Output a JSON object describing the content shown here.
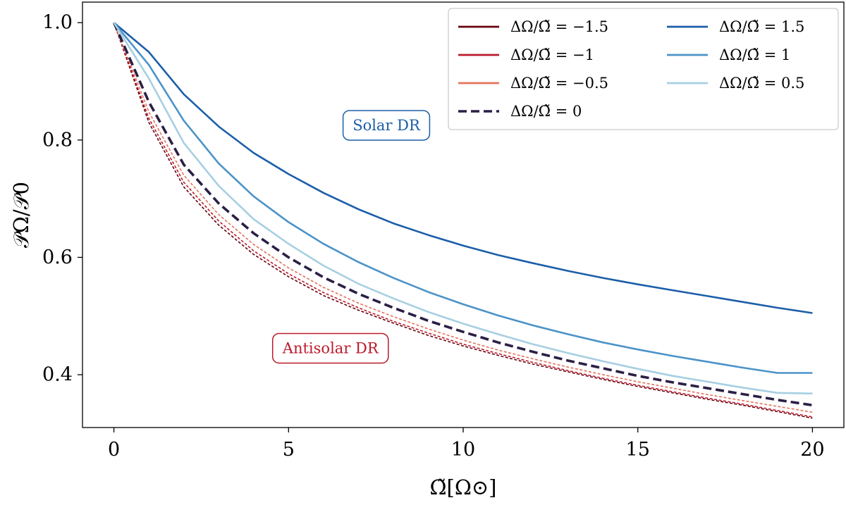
{
  "chart_data": {
    "type": "line",
    "title": "",
    "xlabel": "Ω̃[Ω⊙]",
    "ylabel": "𝒫Ω/𝒫0",
    "xlim": [
      -0.9,
      20.9
    ],
    "ylim": [
      0.31,
      1.035
    ],
    "xticks": [
      0,
      5,
      10,
      15,
      20
    ],
    "xtick_labels": [
      "0",
      "5",
      "10",
      "15",
      "20"
    ],
    "yticks": [
      0.4,
      0.6,
      0.8,
      1.0
    ],
    "ytick_labels": [
      "0.4",
      "0.6",
      "0.8",
      "1.0"
    ],
    "grid": false,
    "legend_position": "top-right",
    "x": [
      0,
      1,
      2,
      3,
      4,
      5,
      6,
      7,
      8,
      9,
      10,
      11,
      12,
      13,
      14,
      15,
      16,
      17,
      18,
      19,
      20
    ],
    "series": [
      {
        "name": "ΔΩ/Ω̃ = −1.5",
        "color": "#67000d",
        "style": "dashed-thin",
        "values": [
          1.0,
          0.83,
          0.72,
          0.655,
          0.605,
          0.567,
          0.535,
          0.51,
          0.488,
          0.467,
          0.449,
          0.433,
          0.418,
          0.405,
          0.392,
          0.38,
          0.369,
          0.358,
          0.348,
          0.337,
          0.326
        ]
      },
      {
        "name": "ΔΩ/Ω̃ = −1",
        "color": "#bb1a2b",
        "style": "dashed-thin",
        "values": [
          1.0,
          0.837,
          0.728,
          0.662,
          0.611,
          0.572,
          0.54,
          0.514,
          0.491,
          0.471,
          0.452,
          0.436,
          0.421,
          0.407,
          0.394,
          0.382,
          0.371,
          0.36,
          0.35,
          0.339,
          0.328
        ]
      },
      {
        "name": "ΔΩ/Ω̃ = −0.5",
        "color": "#e2735b",
        "style": "dashed-thin",
        "values": [
          1.0,
          0.848,
          0.74,
          0.673,
          0.622,
          0.582,
          0.549,
          0.522,
          0.499,
          0.478,
          0.459,
          0.442,
          0.427,
          0.413,
          0.4,
          0.388,
          0.377,
          0.366,
          0.356,
          0.346,
          0.336
        ]
      },
      {
        "name": "ΔΩ/Ω̃ = 0",
        "color": "#2b1f45",
        "style": "dashed-thick",
        "values": [
          1.0,
          0.865,
          0.758,
          0.692,
          0.641,
          0.6,
          0.566,
          0.538,
          0.514,
          0.492,
          0.473,
          0.455,
          0.439,
          0.424,
          0.411,
          0.398,
          0.387,
          0.377,
          0.367,
          0.357,
          0.348
        ]
      },
      {
        "name": "ΔΩ/Ω̃ = 1.5",
        "color": "#1c5ea8",
        "style": "solid",
        "values": [
          1.0,
          0.95,
          0.878,
          0.823,
          0.778,
          0.742,
          0.71,
          0.682,
          0.658,
          0.638,
          0.62,
          0.604,
          0.59,
          0.577,
          0.565,
          0.554,
          0.544,
          0.534,
          0.524,
          0.514,
          0.505
        ]
      },
      {
        "name": "ΔΩ/Ω̃ = 1",
        "color": "#4b93c8",
        "style": "solid",
        "values": [
          1.0,
          0.928,
          0.833,
          0.76,
          0.704,
          0.66,
          0.623,
          0.592,
          0.565,
          0.541,
          0.52,
          0.501,
          0.484,
          0.469,
          0.455,
          0.443,
          0.432,
          0.422,
          0.412,
          0.403,
          0.403
        ]
      },
      {
        "name": "ΔΩ/Ω̃ = 0.5",
        "color": "#a7cfe2",
        "style": "solid",
        "values": [
          1.0,
          0.905,
          0.795,
          0.722,
          0.665,
          0.623,
          0.586,
          0.555,
          0.53,
          0.507,
          0.487,
          0.469,
          0.452,
          0.437,
          0.423,
          0.41,
          0.398,
          0.388,
          0.378,
          0.369,
          0.368
        ]
      }
    ],
    "annotations": [
      {
        "text": "Solar DR",
        "x": 7.8,
        "y": 0.825,
        "color": "#1c5ea8"
      },
      {
        "text": "Antisolar DR",
        "x": 6.2,
        "y": 0.445,
        "color": "#bb1a2b"
      }
    ]
  }
}
